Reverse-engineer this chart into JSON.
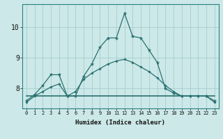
{
  "xlabel": "Humidex (Indice chaleur)",
  "bg_color": "#cce8e8",
  "grid_color": "#9fc8c8",
  "line_color": "#2a7070",
  "xlim": [
    -0.5,
    23.5
  ],
  "ylim": [
    7.35,
    10.75
  ],
  "xticks": [
    0,
    1,
    2,
    3,
    4,
    5,
    6,
    7,
    8,
    9,
    10,
    11,
    12,
    13,
    14,
    15,
    16,
    17,
    18,
    19,
    20,
    21,
    22,
    23
  ],
  "yticks": [
    8,
    9,
    10
  ],
  "series_star": [
    7.6,
    7.8,
    8.1,
    8.45,
    8.45,
    7.75,
    7.75,
    8.4,
    8.8,
    9.35,
    9.65,
    9.65,
    10.45,
    9.7,
    9.65,
    9.25,
    8.85,
    8.0,
    7.85,
    7.75,
    7.75,
    7.75,
    7.75,
    7.6
  ],
  "series_flat": [
    7.75,
    7.75,
    7.75,
    7.75,
    7.75,
    7.75,
    7.75,
    7.75,
    7.75,
    7.75,
    7.75,
    7.75,
    7.75,
    7.75,
    7.75,
    7.75,
    7.75,
    7.75,
    7.75,
    7.75,
    7.75,
    7.75,
    7.75,
    7.75
  ],
  "series_diamond": [
    7.55,
    7.75,
    7.9,
    8.05,
    8.15,
    7.75,
    7.9,
    8.3,
    8.5,
    8.65,
    8.8,
    8.9,
    8.95,
    8.85,
    8.7,
    8.55,
    8.35,
    8.1,
    7.9,
    7.75,
    7.75,
    7.75,
    7.75,
    7.55
  ]
}
